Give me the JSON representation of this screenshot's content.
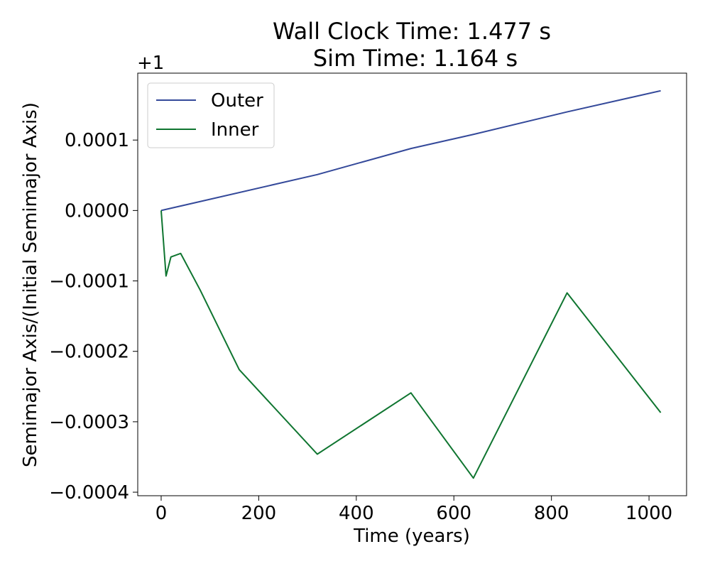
{
  "chart_data": {
    "type": "line",
    "title": "Wall Clock Time: 1.477 s",
    "subtitle": "Sim Time: 1.164 s",
    "xlabel": "Time (years)",
    "ylabel": "Semimajor Axis/(Initial Semimajor Axis)",
    "y_offset_label": "+1",
    "xlim": [
      -48,
      1077
    ],
    "ylim": [
      -0.000405,
      0.000195
    ],
    "x_ticks": [
      {
        "value": 0,
        "label": "0"
      },
      {
        "value": 200,
        "label": "200"
      },
      {
        "value": 400,
        "label": "400"
      },
      {
        "value": 600,
        "label": "600"
      },
      {
        "value": 800,
        "label": "800"
      },
      {
        "value": 1000,
        "label": "1000"
      }
    ],
    "y_ticks": [
      {
        "value": 0.0001,
        "label": "0.0001"
      },
      {
        "value": 0.0,
        "label": "0.0000"
      },
      {
        "value": -0.0001,
        "label": "−0.0001"
      },
      {
        "value": -0.0002,
        "label": "−0.0002"
      },
      {
        "value": -0.0003,
        "label": "−0.0003"
      },
      {
        "value": -0.0004,
        "label": "−0.0004"
      }
    ],
    "grid": false,
    "legend_position": "top-left",
    "series": [
      {
        "name": "Outer",
        "color": "#34499a",
        "x": [
          0,
          320,
          512,
          640,
          832,
          1024
        ],
        "y": [
          0.0,
          5.1e-05,
          8.8e-05,
          0.000108,
          0.00014,
          0.00017
        ]
      },
      {
        "name": "Inner",
        "color": "#0f7530",
        "x": [
          0,
          10,
          20,
          40,
          80,
          160,
          320,
          512,
          640,
          832,
          1024
        ],
        "y": [
          0.0,
          -9.3e-05,
          -6.6e-05,
          -6.1e-05,
          -0.000113,
          -0.000226,
          -0.000346,
          -0.000259,
          -0.00038,
          -0.000117,
          -0.000287
        ]
      }
    ]
  }
}
